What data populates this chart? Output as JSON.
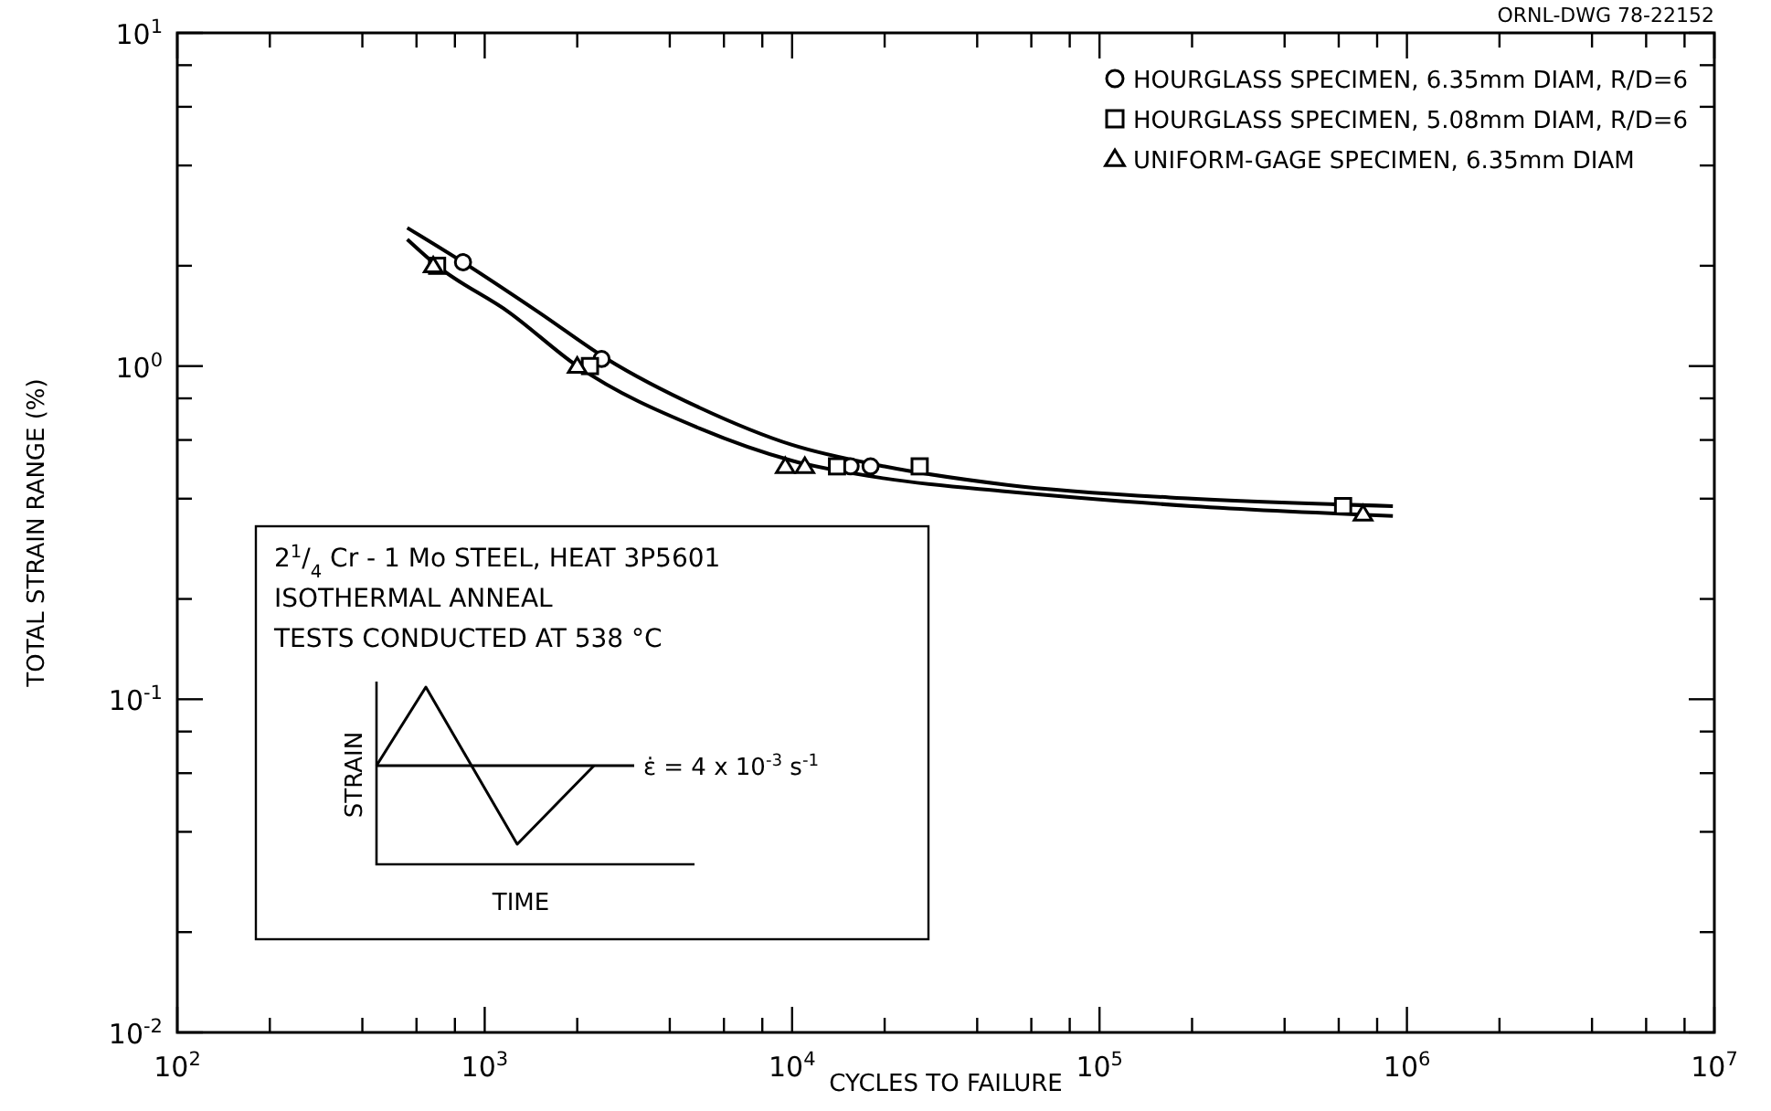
{
  "chart_data": {
    "type": "scatter",
    "xlabel": "CYCLES TO FAILURE",
    "ylabel": "TOTAL STRAIN RANGE (%)",
    "log": "xy",
    "grid": false,
    "legend": "top right",
    "xlim": [
      100,
      10000000
    ],
    "ylim": [
      0.01,
      10
    ],
    "xticks": [
      {
        "value": 100,
        "label": "10$^{2}$"
      },
      {
        "value": 200,
        "label": null
      },
      {
        "value": 400,
        "label": null
      },
      {
        "value": 600,
        "label": null
      },
      {
        "value": 800,
        "label": null
      },
      {
        "value": 1000,
        "label": "10$^{3}$"
      },
      {
        "value": 2000,
        "label": null
      },
      {
        "value": 4000,
        "label": null
      },
      {
        "value": 6000,
        "label": null
      },
      {
        "value": 8000,
        "label": null
      },
      {
        "value": 10000,
        "label": "10$^{4}$"
      },
      {
        "value": 20000,
        "label": null
      },
      {
        "value": 40000,
        "label": null
      },
      {
        "value": 60000,
        "label": null
      },
      {
        "value": 80000,
        "label": null
      },
      {
        "value": 100000,
        "label": "10$^{5}$"
      },
      {
        "value": 200000,
        "label": null
      },
      {
        "value": 400000,
        "label": null
      },
      {
        "value": 600000,
        "label": null
      },
      {
        "value": 800000,
        "label": null
      },
      {
        "value": 1000000,
        "label": "10$^{6}$"
      },
      {
        "value": 2000000,
        "label": null
      },
      {
        "value": 4000000,
        "label": null
      },
      {
        "value": 6000000,
        "label": null
      },
      {
        "value": 8000000,
        "label": null
      },
      {
        "value": 10000000,
        "label": "10$^{7}$"
      }
    ],
    "yticks": [
      {
        "value": 0.01,
        "label": "10$^{-2}$"
      },
      {
        "value": 0.02,
        "label": null
      },
      {
        "value": 0.04,
        "label": null
      },
      {
        "value": 0.06,
        "label": null
      },
      {
        "value": 0.08,
        "label": null
      },
      {
        "value": 0.1,
        "label": "10$^{-1}$"
      },
      {
        "value": 0.2,
        "label": null
      },
      {
        "value": 0.4,
        "label": null
      },
      {
        "value": 0.6,
        "label": null
      },
      {
        "value": 0.8,
        "label": null
      },
      {
        "value": 1,
        "label": "10$^{0}$"
      },
      {
        "value": 2,
        "label": null
      },
      {
        "value": 4,
        "label": null
      },
      {
        "value": 6,
        "label": null
      },
      {
        "value": 8,
        "label": null
      },
      {
        "value": 10,
        "label": "10$^{1}$"
      }
    ],
    "series": [
      {
        "name": "HOURGLASS SPECIMEN, 6.35mm DIAM, R/D=6",
        "color": "#000000",
        "marker": "circle",
        "x": [
          850,
          2400,
          15500,
          18000
        ],
        "values": [
          2.05,
          1.05,
          0.5,
          0.5
        ]
      },
      {
        "name": "HOURGLASS SPECIMEN, 5.08mm DIAM, R/D=6",
        "color": "#000000",
        "marker": "square",
        "x": [
          700,
          2200,
          14000,
          26000,
          620000
        ],
        "values": [
          2.0,
          1.0,
          0.5,
          0.5,
          0.38
        ]
      },
      {
        "name": "UNIFORM-GAGE SPECIMEN, 6.35mm DIAM",
        "color": "#000000",
        "marker": "triangle",
        "x": [
          680,
          2000,
          9500,
          11000,
          720000
        ],
        "values": [
          2.0,
          1.0,
          0.5,
          0.5,
          0.36
        ]
      },
      {
        "type": "line",
        "color": "#000000",
        "marker": "none",
        "x": [
          560,
          850,
          1500,
          2500,
          5000,
          10000,
          20000,
          50000,
          200000,
          900000
        ],
        "values": [
          2.6,
          2.05,
          1.45,
          1.05,
          0.75,
          0.58,
          0.5,
          0.44,
          0.4,
          0.38
        ]
      },
      {
        "type": "line",
        "color": "#000000",
        "marker": "none",
        "x": [
          560,
          700,
          1200,
          2000,
          5000,
          10000,
          20000,
          50000,
          200000,
          900000
        ],
        "values": [
          2.4,
          2.0,
          1.45,
          1.0,
          0.65,
          0.52,
          0.46,
          0.42,
          0.38,
          0.355
        ]
      }
    ],
    "annotations": [
      "ORNL-DWG 78-22152",
      "2$^{1}$/$_{4}$ Cr - 1 Mo STEEL, HEAT 3P5601",
      "ISOTHERMAL ANNEAL",
      "TESTS CONDUCTED AT 538 °C",
      "STRAIN",
      "TIME",
      "ε̇ = 4 x 10$^{-3}$ s$^{-1}$"
    ]
  }
}
